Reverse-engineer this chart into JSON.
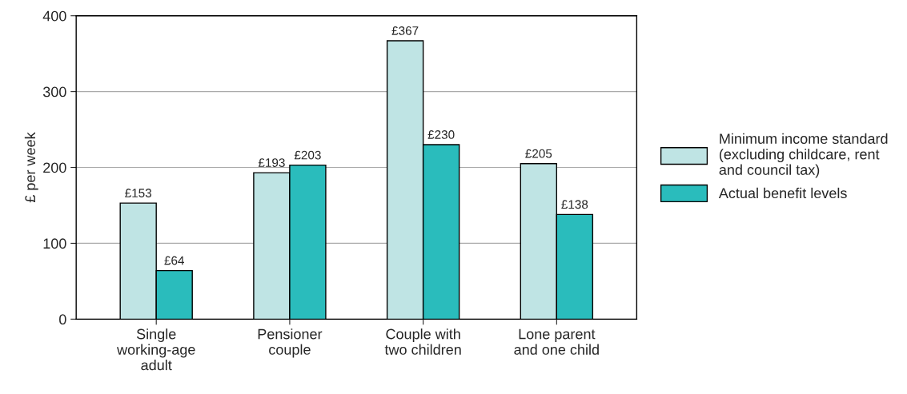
{
  "chart_data": {
    "type": "bar",
    "ylabel": "£ per week",
    "categories": [
      "Single\nworking-age\nadult",
      "Pensioner\ncouple",
      "Couple with\ntwo children",
      "Lone parent\nand one child"
    ],
    "series": [
      {
        "name": "Minimum income standard\n(excluding childcare, rent\nand council tax)",
        "color": "#bfe4e4",
        "values": [
          153,
          193,
          367,
          205
        ],
        "value_labels": [
          "£153",
          "£193",
          "£367",
          "£205"
        ]
      },
      {
        "name": "Actual benefit levels",
        "color": "#2abcbc",
        "values": [
          64,
          203,
          230,
          138
        ],
        "value_labels": [
          "£64",
          "£203",
          "£230",
          "£138"
        ]
      }
    ],
    "ylim": [
      0,
      400
    ],
    "yticks": [
      0,
      100,
      200,
      300,
      400
    ],
    "grid": "y",
    "legend": "right"
  }
}
